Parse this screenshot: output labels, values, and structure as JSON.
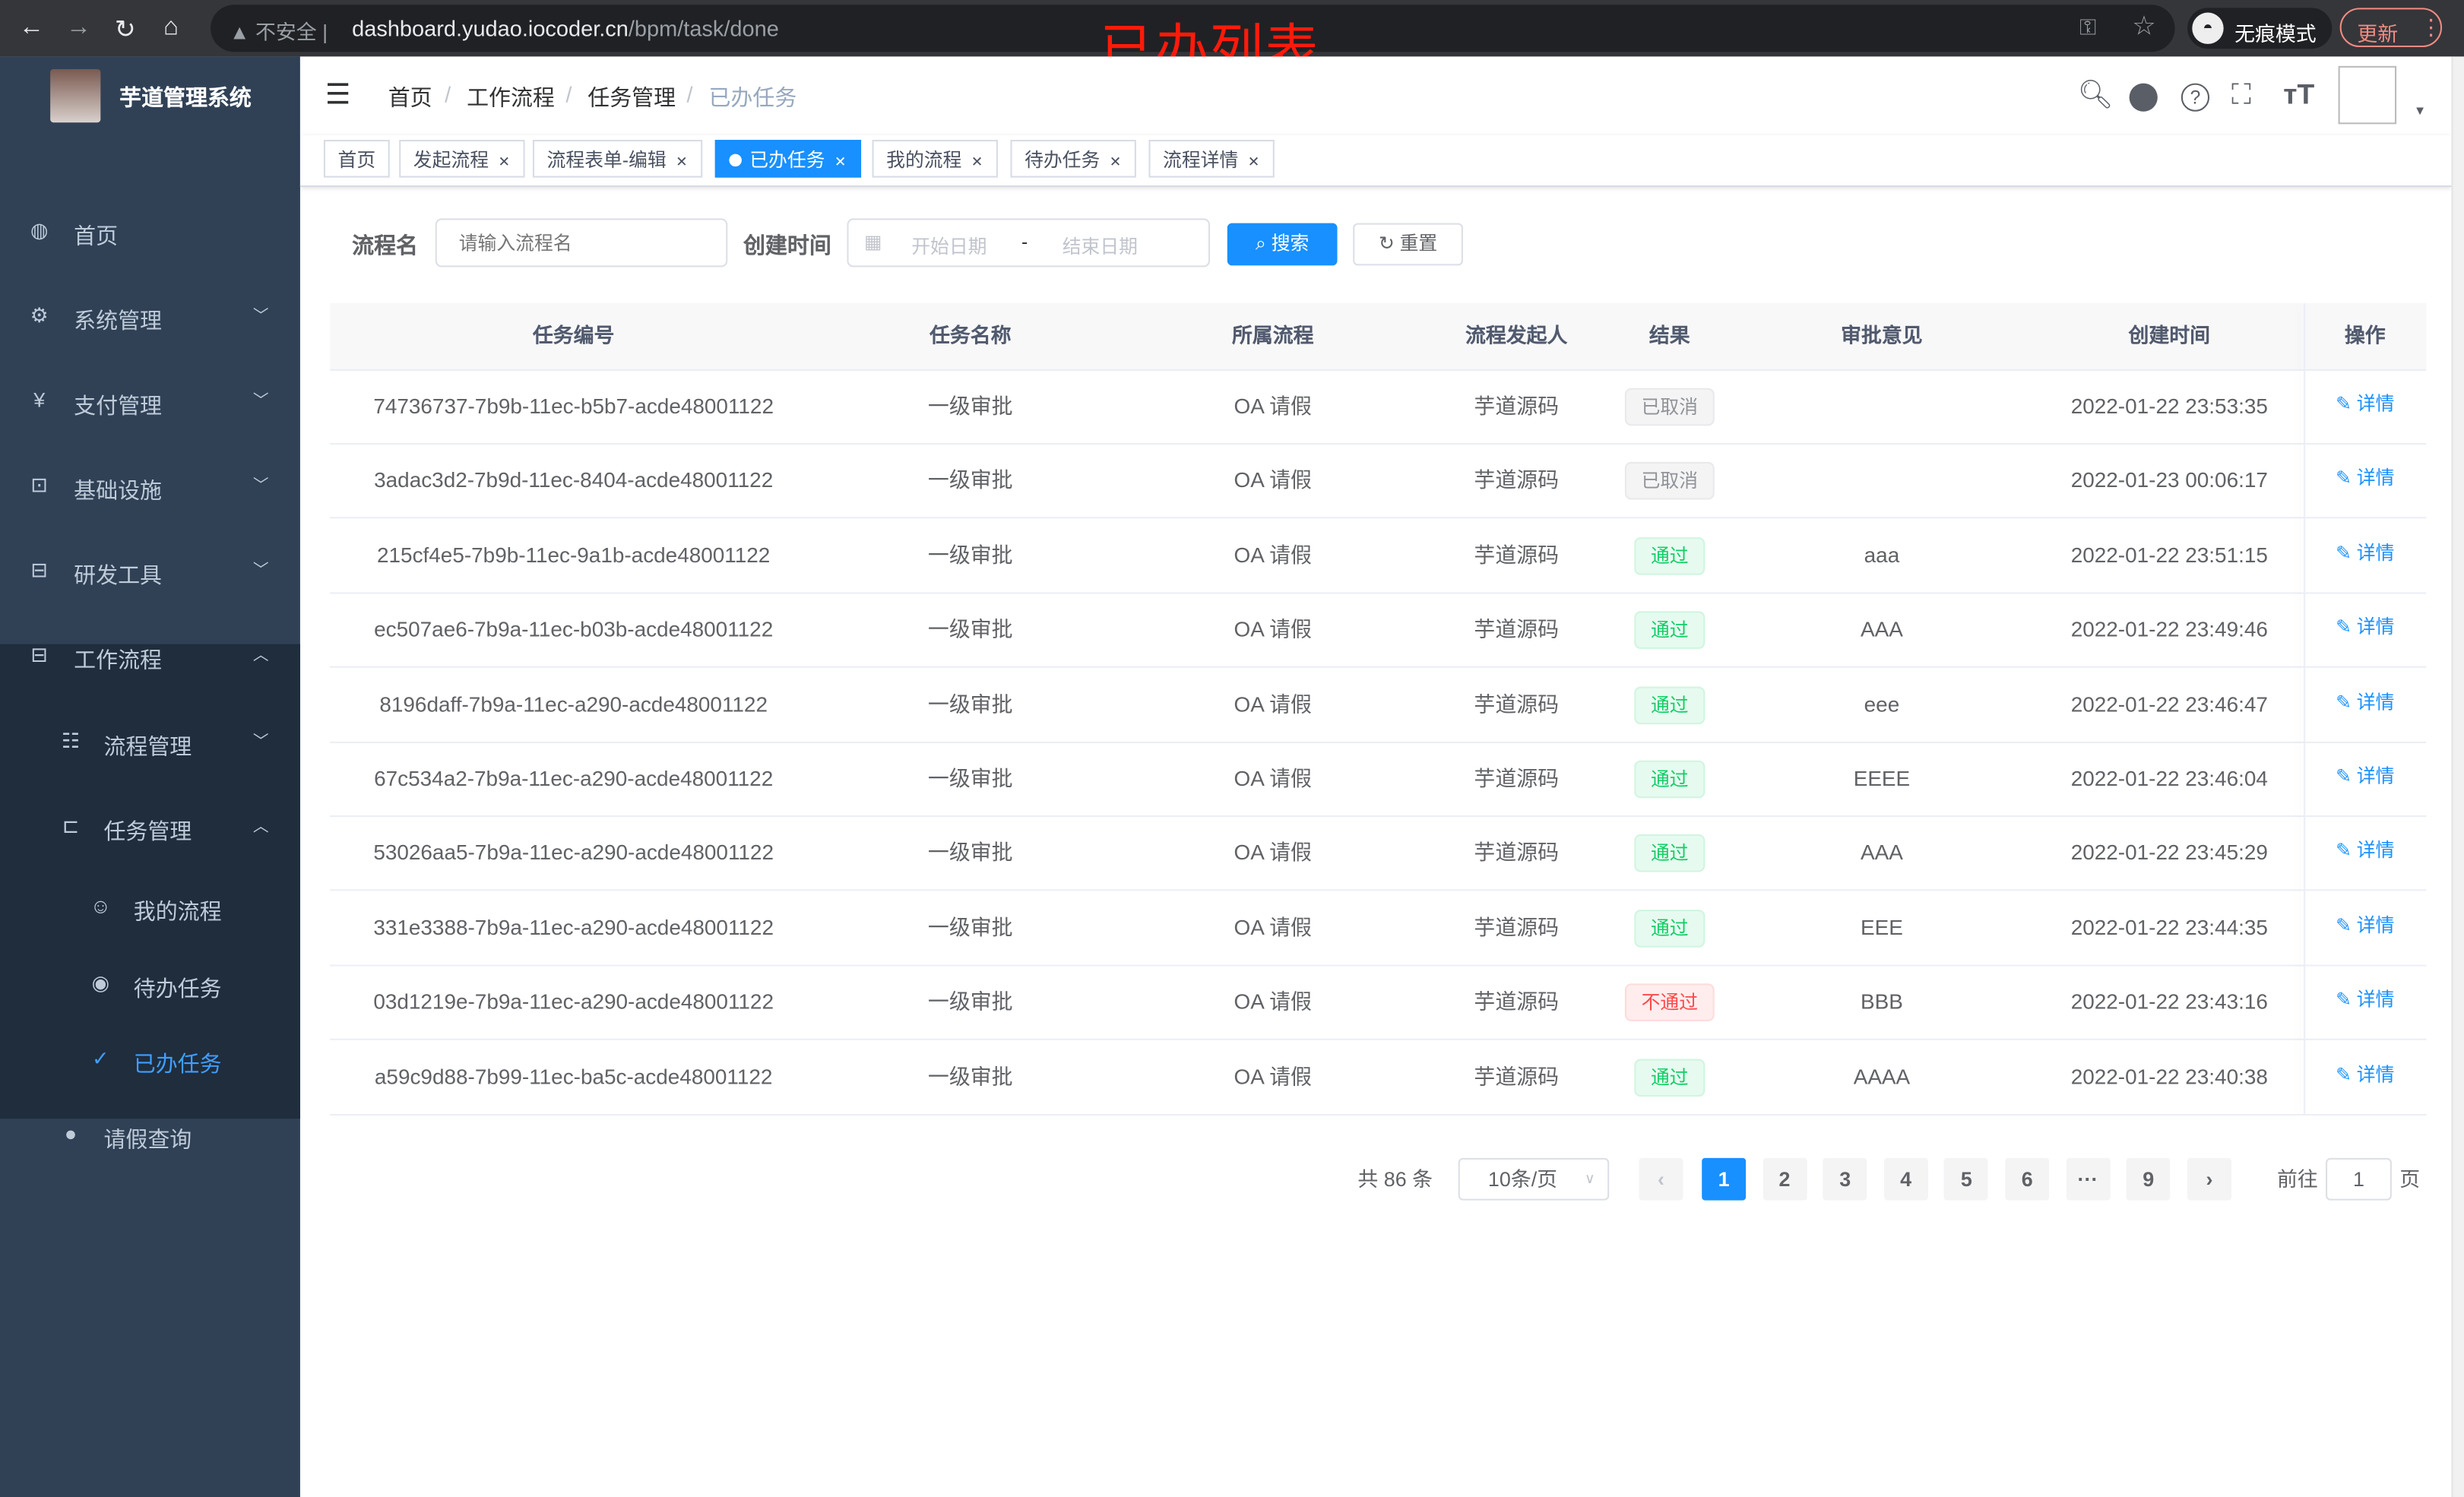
{
  "browser": {
    "security_label": "不安全",
    "url_host": "dashboard.yudao.iocoder.cn",
    "url_path": "/bpm/task/done",
    "incognito_label": "无痕模式",
    "update_label": "更新"
  },
  "overlay_title": "已办列表",
  "sidebar": {
    "title": "芋道管理系统",
    "items": [
      {
        "label": "首页",
        "icon": "dashboard-icon"
      },
      {
        "label": "系统管理",
        "icon": "gear-icon"
      },
      {
        "label": "支付管理",
        "icon": "yen-icon"
      },
      {
        "label": "基础设施",
        "icon": "monitor-icon"
      },
      {
        "label": "研发工具",
        "icon": "toolbox-icon"
      },
      {
        "label": "工作流程",
        "icon": "toolbox-icon"
      }
    ],
    "sub": [
      {
        "label": "流程管理",
        "icon": "list-icon"
      },
      {
        "label": "任务管理",
        "icon": "tree-icon"
      },
      {
        "label": "我的流程",
        "icon": "user-icon"
      },
      {
        "label": "待办任务",
        "icon": "eye-icon"
      },
      {
        "label": "已办任务",
        "icon": "done-icon"
      },
      {
        "label": "请假查询",
        "icon": "person-icon"
      }
    ],
    "active_color": "#409eff"
  },
  "breadcrumb": [
    "首页",
    "工作流程",
    "任务管理",
    "已办任务"
  ],
  "tags": [
    {
      "label": "首页",
      "closable": false
    },
    {
      "label": "发起流程",
      "closable": true
    },
    {
      "label": "流程表单-编辑",
      "closable": true
    },
    {
      "label": "已办任务",
      "closable": true,
      "active": true
    },
    {
      "label": "我的流程",
      "closable": true
    },
    {
      "label": "待办任务",
      "closable": true
    },
    {
      "label": "流程详情",
      "closable": true
    }
  ],
  "search": {
    "name_label": "流程名",
    "name_placeholder": "请输入流程名",
    "time_label": "创建时间",
    "start_placeholder": "开始日期",
    "range_sep": "-",
    "end_placeholder": "结束日期",
    "search_btn": "搜索",
    "reset_btn": "重置"
  },
  "table": {
    "columns": [
      "任务编号",
      "任务名称",
      "所属流程",
      "流程发起人",
      "结果",
      "审批意见",
      "创建时间",
      "操作"
    ],
    "action_label": "详情",
    "rows": [
      {
        "id": "74736737-7b9b-11ec-b5b7-acde48001122",
        "name": "一级审批",
        "process": "OA 请假",
        "starter": "芋道源码",
        "result": "已取消",
        "status": "cancel",
        "comment": "",
        "time": "2022-01-22 23:53:35"
      },
      {
        "id": "3adac3d2-7b9d-11ec-8404-acde48001122",
        "name": "一级审批",
        "process": "OA 请假",
        "starter": "芋道源码",
        "result": "已取消",
        "status": "cancel",
        "comment": "",
        "time": "2022-01-23 00:06:17"
      },
      {
        "id": "215cf4e5-7b9b-11ec-9a1b-acde48001122",
        "name": "一级审批",
        "process": "OA 请假",
        "starter": "芋道源码",
        "result": "通过",
        "status": "pass",
        "comment": "aaa",
        "time": "2022-01-22 23:51:15"
      },
      {
        "id": "ec507ae6-7b9a-11ec-b03b-acde48001122",
        "name": "一级审批",
        "process": "OA 请假",
        "starter": "芋道源码",
        "result": "通过",
        "status": "pass",
        "comment": "AAA",
        "time": "2022-01-22 23:49:46"
      },
      {
        "id": "8196daff-7b9a-11ec-a290-acde48001122",
        "name": "一级审批",
        "process": "OA 请假",
        "starter": "芋道源码",
        "result": "通过",
        "status": "pass",
        "comment": "eee",
        "time": "2022-01-22 23:46:47"
      },
      {
        "id": "67c534a2-7b9a-11ec-a290-acde48001122",
        "name": "一级审批",
        "process": "OA 请假",
        "starter": "芋道源码",
        "result": "通过",
        "status": "pass",
        "comment": "EEEE",
        "time": "2022-01-22 23:46:04"
      },
      {
        "id": "53026aa5-7b9a-11ec-a290-acde48001122",
        "name": "一级审批",
        "process": "OA 请假",
        "starter": "芋道源码",
        "result": "通过",
        "status": "pass",
        "comment": "AAA",
        "time": "2022-01-22 23:45:29"
      },
      {
        "id": "331e3388-7b9a-11ec-a290-acde48001122",
        "name": "一级审批",
        "process": "OA 请假",
        "starter": "芋道源码",
        "result": "通过",
        "status": "pass",
        "comment": "EEE",
        "time": "2022-01-22 23:44:35"
      },
      {
        "id": "03d1219e-7b9a-11ec-a290-acde48001122",
        "name": "一级审批",
        "process": "OA 请假",
        "starter": "芋道源码",
        "result": "不通过",
        "status": "reject",
        "comment": "BBB",
        "time": "2022-01-22 23:43:16"
      },
      {
        "id": "a59c9d88-7b99-11ec-ba5c-acde48001122",
        "name": "一级审批",
        "process": "OA 请假",
        "starter": "芋道源码",
        "result": "通过",
        "status": "pass",
        "comment": "AAAA",
        "time": "2022-01-22 23:40:38"
      }
    ]
  },
  "pagination": {
    "total": "共 86 条",
    "page_size": "10条/页",
    "pages": [
      "1",
      "2",
      "3",
      "4",
      "5",
      "6",
      "···",
      "9"
    ],
    "current": "1",
    "goto_prefix": "前往",
    "goto_value": "1",
    "goto_suffix": "页"
  }
}
